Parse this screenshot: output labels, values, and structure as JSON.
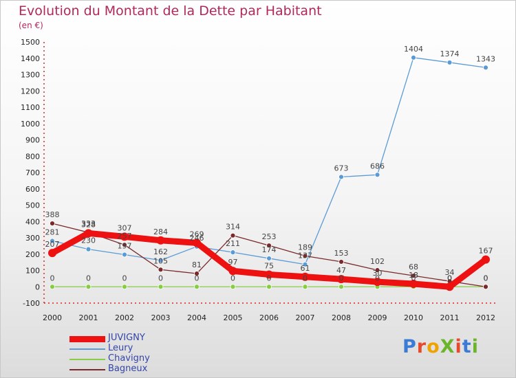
{
  "title": "Evolution du Montant de la Dette par Habitant",
  "subtitle": "(en €)",
  "logo": {
    "text": "ProXiti",
    "colors": [
      "#3a7bd5",
      "#e8492b",
      "#f0a300",
      "#6bb52b",
      "#e8492b",
      "#3a7bd5",
      "#6bb52b"
    ]
  },
  "chart_data": {
    "type": "line",
    "title": "Evolution du Montant de la Dette par Habitant",
    "subtitle": "(en €)",
    "xlabel": "",
    "ylabel": "",
    "x": [
      "2000",
      "2001",
      "2002",
      "2003",
      "2004",
      "2005",
      "2006",
      "2007",
      "2008",
      "2009",
      "2010",
      "2011",
      "2012"
    ],
    "ylim": [
      -100,
      1500
    ],
    "yticks": [
      -100,
      0,
      100,
      200,
      300,
      400,
      500,
      600,
      700,
      800,
      900,
      1000,
      1100,
      1200,
      1300,
      1400,
      1500
    ],
    "grid": false,
    "legend_position": "bottom-left",
    "series": [
      {
        "name": "JUVIGNY",
        "color": "#ee1111",
        "line_width": 9,
        "marker_radius": 6,
        "values": [
          207,
          328,
          307,
          284,
          269,
          97,
          75,
          61,
          47,
          30,
          18,
          0,
          167
        ],
        "labels": [
          "207",
          "328",
          "307",
          "284",
          "269",
          "97",
          "75",
          "61",
          "47",
          "30",
          "18",
          "0",
          "167"
        ]
      },
      {
        "name": "Leury",
        "color": "#5b9bd5",
        "line_width": 1.3,
        "marker_radius": 3.5,
        "values": [
          281,
          230,
          197,
          162,
          246,
          211,
          174,
          137,
          673,
          686,
          1404,
          1374,
          1343
        ],
        "labels": [
          "281",
          "230",
          "197",
          "162",
          "246",
          "211",
          "174",
          "137",
          "673",
          "686",
          "1404",
          "1374",
          "1343"
        ]
      },
      {
        "name": "Chavigny",
        "color": "#88cc44",
        "line_width": 1.3,
        "marker_radius": 3.5,
        "values": [
          0,
          0,
          0,
          0,
          0,
          0,
          0,
          0,
          0,
          0,
          0,
          0,
          0
        ],
        "labels": [
          "0",
          "0",
          "0",
          "0",
          "0",
          "0",
          "0",
          "0",
          "0",
          "0",
          "0",
          "0",
          "0"
        ]
      },
      {
        "name": "Bagneux",
        "color": "#7a2a2a",
        "line_width": 1.3,
        "marker_radius": 3.5,
        "values": [
          388,
          333,
          257,
          105,
          81,
          314,
          253,
          189,
          153,
          102,
          68,
          34,
          0
        ],
        "labels": [
          "388",
          "333",
          "257",
          "105",
          "81",
          "314",
          "253",
          "189",
          "153",
          "102",
          "68",
          "34",
          "0"
        ]
      }
    ]
  }
}
